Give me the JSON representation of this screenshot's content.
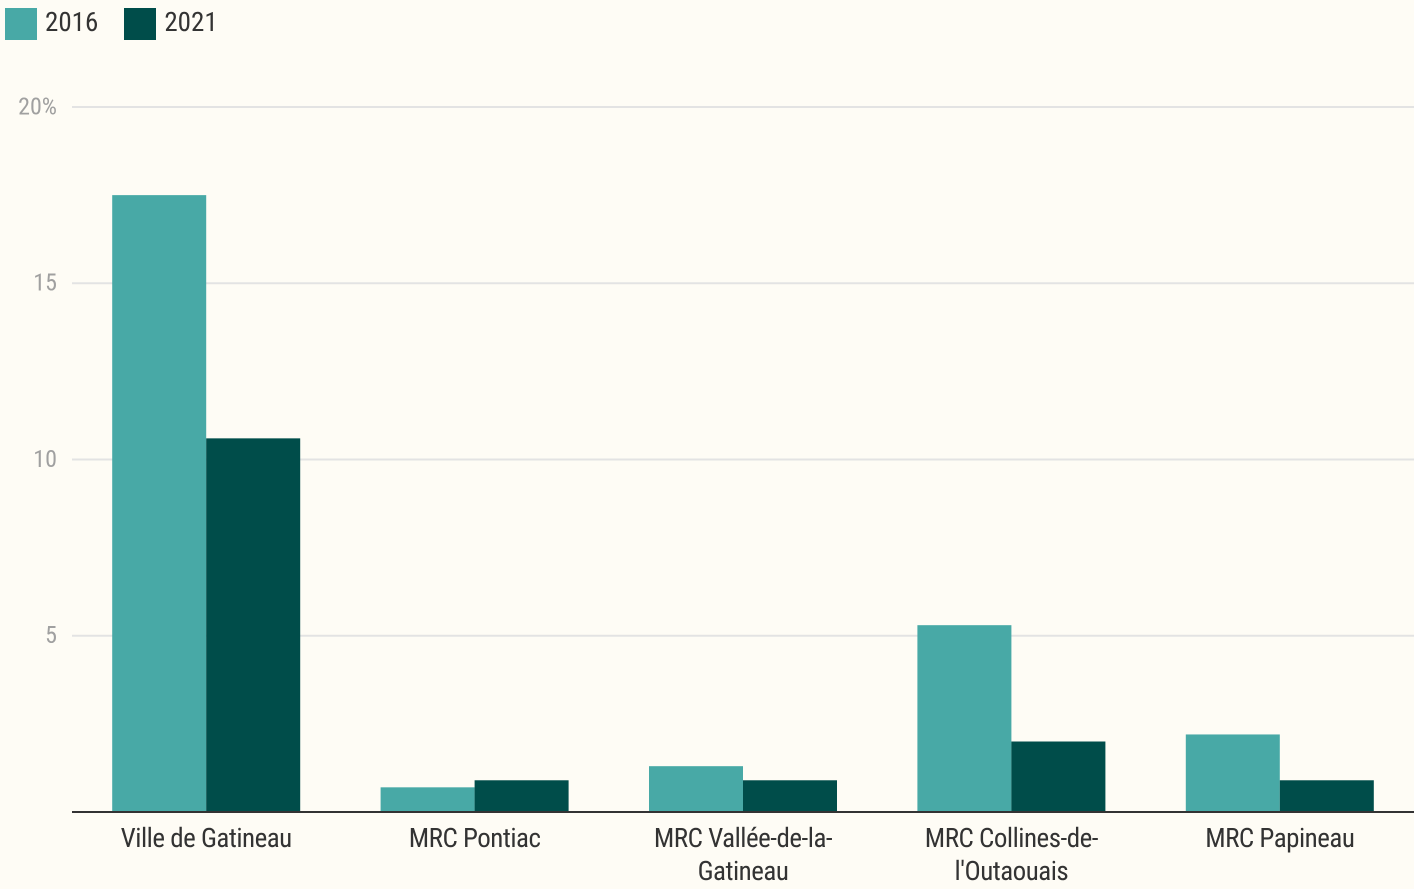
{
  "chart_data": {
    "type": "bar",
    "categories": [
      "Ville de Gatineau",
      "MRC Pontiac",
      "MRC Vallée-de-la-Gatineau",
      "MRC Collines-de-l'Outaouais",
      "MRC Papineau"
    ],
    "series": [
      {
        "name": "2016",
        "color": "#48a9a6",
        "values": [
          17.5,
          0.7,
          1.3,
          5.3,
          2.2
        ]
      },
      {
        "name": "2021",
        "color": "#004d4a",
        "values": [
          10.6,
          0.9,
          0.9,
          2.0,
          0.9
        ]
      }
    ],
    "ylim": [
      0,
      20
    ],
    "yticks": [
      {
        "value": 20,
        "label": "20%"
      },
      15,
      10,
      5
    ],
    "grid": true
  }
}
